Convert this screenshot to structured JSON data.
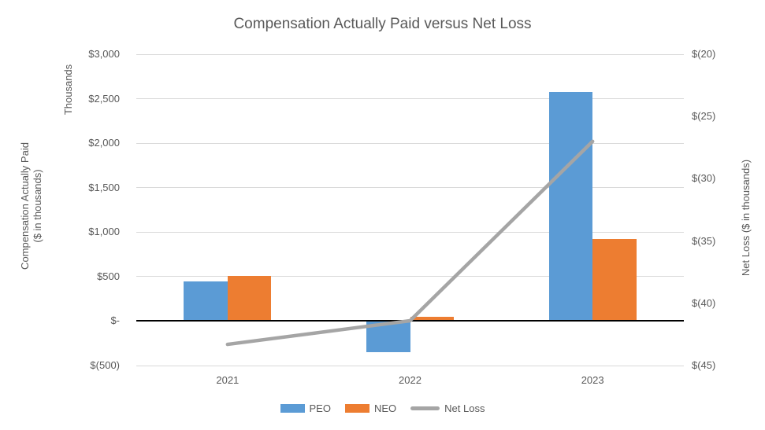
{
  "title": "Compensation Actually Paid versus Net Loss",
  "left_axis": {
    "units_label": "Thousands",
    "title": "Compensation Actually Paid\n($ in thousands)",
    "ticks": [
      "$3,000",
      "$2,500",
      "$2,000",
      "$1,500",
      "$1,000",
      "$500",
      "$-",
      "$(500)"
    ],
    "max": 3000,
    "min": -500,
    "step": 500
  },
  "right_axis": {
    "title": "Net Loss ($ in thousands)",
    "ticks": [
      "$(20)",
      "$(25)",
      "$(30)",
      "$(35)",
      "$(40)",
      "$(45)"
    ],
    "max": -20,
    "min": -45,
    "step": 5
  },
  "x_axis": {
    "categories": [
      "2021",
      "2022",
      "2023"
    ]
  },
  "legend": [
    {
      "label": "PEO",
      "color": "#5B9BD5",
      "type": "bar"
    },
    {
      "label": "NEO",
      "color": "#ED7D31",
      "type": "bar"
    },
    {
      "label": "Net Loss",
      "color": "#A5A5A5",
      "type": "line"
    }
  ],
  "colors": {
    "peo": "#5B9BD5",
    "neo": "#ED7D31",
    "net_loss": "#A5A5A5",
    "gridline": "#D9D9D9",
    "text": "#595959",
    "zero_axis": "#000000"
  },
  "chart_data": {
    "type": "bar",
    "title": "Compensation Actually Paid versus Net Loss",
    "categories": [
      "2021",
      "2022",
      "2023"
    ],
    "series": [
      {
        "name": "PEO",
        "type": "bar",
        "axis": "left",
        "color": "#5B9BD5",
        "values": [
          450,
          -350,
          2575
        ]
      },
      {
        "name": "NEO",
        "type": "bar",
        "axis": "left",
        "color": "#ED7D31",
        "values": [
          505,
          50,
          920
        ]
      },
      {
        "name": "Net Loss",
        "type": "line",
        "axis": "right",
        "color": "#A5A5A5",
        "values": [
          -43.3,
          -41.4,
          -27.0
        ]
      }
    ],
    "left_ylabel": "Compensation Actually Paid ($ in thousands)",
    "right_ylabel": "Net Loss ($ in thousands)",
    "left_ylim": [
      -500,
      3000
    ],
    "right_ylim": [
      -45,
      -20
    ],
    "grid": true,
    "legend_position": "bottom"
  }
}
